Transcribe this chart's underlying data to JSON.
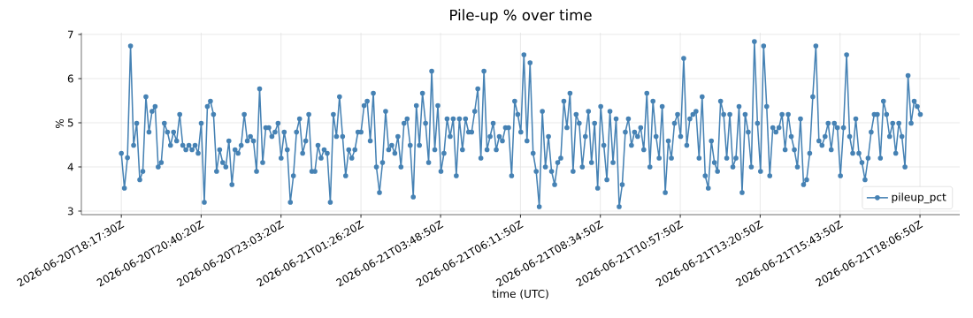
{
  "chart_data": {
    "type": "line",
    "title": "Pile-up % over time",
    "xlabel": "time (UTC)",
    "ylabel": "%",
    "x": [
      "2026-06-20T18:17:30",
      "2026-06-20T18:23:00",
      "2026-06-20T18:28:30",
      "2026-06-20T18:34:00",
      "2026-06-20T18:39:30",
      "2026-06-20T18:45:00",
      "2026-06-20T18:50:30",
      "2026-06-20T18:56:00",
      "2026-06-20T19:01:30",
      "2026-06-20T19:07:00",
      "2026-06-20T19:12:30",
      "2026-06-20T19:18:00",
      "2026-06-20T19:23:30",
      "2026-06-20T19:29:00",
      "2026-06-20T19:34:30",
      "2026-06-20T19:40:00",
      "2026-06-20T19:45:30",
      "2026-06-20T19:51:00",
      "2026-06-20T19:56:30",
      "2026-06-20T20:02:00",
      "2026-06-20T20:07:30",
      "2026-06-20T20:13:00",
      "2026-06-20T20:18:30",
      "2026-06-20T20:24:00",
      "2026-06-20T20:29:30",
      "2026-06-20T20:35:00",
      "2026-06-20T20:40:30",
      "2026-06-20T20:46:00",
      "2026-06-20T20:51:30",
      "2026-06-20T20:57:00",
      "2026-06-20T21:02:30",
      "2026-06-20T21:08:00",
      "2026-06-20T21:13:30",
      "2026-06-20T21:19:00",
      "2026-06-20T21:24:30",
      "2026-06-20T21:30:00",
      "2026-06-20T21:35:30",
      "2026-06-20T21:41:00",
      "2026-06-20T21:46:30",
      "2026-06-20T21:52:00",
      "2026-06-20T21:57:30",
      "2026-06-20T22:03:00",
      "2026-06-20T22:08:30",
      "2026-06-20T22:14:00",
      "2026-06-20T22:19:30",
      "2026-06-20T22:25:00",
      "2026-06-20T22:30:30",
      "2026-06-20T22:36:00",
      "2026-06-20T22:41:30",
      "2026-06-20T22:47:00",
      "2026-06-20T22:52:30",
      "2026-06-20T22:58:00",
      "2026-06-20T23:03:30",
      "2026-06-20T23:09:00",
      "2026-06-20T23:14:30",
      "2026-06-20T23:20:00",
      "2026-06-20T23:25:30",
      "2026-06-20T23:31:00",
      "2026-06-20T23:36:30",
      "2026-06-20T23:42:00",
      "2026-06-20T23:47:30",
      "2026-06-20T23:53:00",
      "2026-06-20T23:58:30",
      "2026-06-21T00:04:00",
      "2026-06-21T00:09:30",
      "2026-06-21T00:15:00",
      "2026-06-21T00:20:30",
      "2026-06-21T00:26:00",
      "2026-06-21T00:31:30",
      "2026-06-21T00:37:00",
      "2026-06-21T00:42:30",
      "2026-06-21T00:48:00",
      "2026-06-21T00:53:30",
      "2026-06-21T00:59:00",
      "2026-06-21T01:04:30",
      "2026-06-21T01:10:00",
      "2026-06-21T01:15:30",
      "2026-06-21T01:21:00",
      "2026-06-21T01:26:30",
      "2026-06-21T01:32:00",
      "2026-06-21T01:37:30",
      "2026-06-21T01:43:00",
      "2026-06-21T01:48:30",
      "2026-06-21T01:54:00",
      "2026-06-21T01:59:30",
      "2026-06-21T02:05:00",
      "2026-06-21T02:10:30",
      "2026-06-21T02:16:00",
      "2026-06-21T02:21:30",
      "2026-06-21T02:27:00",
      "2026-06-21T02:32:30",
      "2026-06-21T02:38:00",
      "2026-06-21T02:43:30",
      "2026-06-21T02:49:00",
      "2026-06-21T02:54:30",
      "2026-06-21T03:00:00",
      "2026-06-21T03:05:30",
      "2026-06-21T03:11:00",
      "2026-06-21T03:16:30",
      "2026-06-21T03:22:00",
      "2026-06-21T03:27:30",
      "2026-06-21T03:33:00",
      "2026-06-21T03:38:30",
      "2026-06-21T03:44:00",
      "2026-06-21T03:49:30",
      "2026-06-21T03:55:00",
      "2026-06-21T04:00:30",
      "2026-06-21T04:06:00",
      "2026-06-21T04:11:30",
      "2026-06-21T04:17:00",
      "2026-06-21T04:22:30",
      "2026-06-21T04:28:00",
      "2026-06-21T04:33:30",
      "2026-06-21T04:39:00",
      "2026-06-21T04:44:30",
      "2026-06-21T04:50:00",
      "2026-06-21T04:55:30",
      "2026-06-21T05:01:00",
      "2026-06-21T05:06:30",
      "2026-06-21T05:12:00",
      "2026-06-21T05:17:30",
      "2026-06-21T05:23:00",
      "2026-06-21T05:28:30",
      "2026-06-21T05:34:00",
      "2026-06-21T05:39:30",
      "2026-06-21T05:45:00",
      "2026-06-21T05:50:30",
      "2026-06-21T05:56:00",
      "2026-06-21T06:01:30",
      "2026-06-21T06:07:00",
      "2026-06-21T06:12:30",
      "2026-06-21T06:18:00",
      "2026-06-21T06:23:30",
      "2026-06-21T06:29:00",
      "2026-06-21T06:34:30",
      "2026-06-21T06:40:00",
      "2026-06-21T06:45:30",
      "2026-06-21T06:51:00",
      "2026-06-21T06:56:30",
      "2026-06-21T07:02:00",
      "2026-06-21T07:07:30",
      "2026-06-21T07:13:00",
      "2026-06-21T07:18:30",
      "2026-06-21T07:24:00",
      "2026-06-21T07:29:30",
      "2026-06-21T07:35:00",
      "2026-06-21T07:40:30",
      "2026-06-21T07:46:00",
      "2026-06-21T07:51:30",
      "2026-06-21T07:57:00",
      "2026-06-21T08:02:30",
      "2026-06-21T08:08:00",
      "2026-06-21T08:13:30",
      "2026-06-21T08:19:00",
      "2026-06-21T08:24:30",
      "2026-06-21T08:30:00",
      "2026-06-21T08:35:30",
      "2026-06-21T08:41:00",
      "2026-06-21T08:46:30",
      "2026-06-21T08:52:00",
      "2026-06-21T08:57:30",
      "2026-06-21T09:03:00",
      "2026-06-21T09:08:30",
      "2026-06-21T09:14:00",
      "2026-06-21T09:19:30",
      "2026-06-21T09:25:00",
      "2026-06-21T09:30:30",
      "2026-06-21T09:36:00",
      "2026-06-21T09:41:30",
      "2026-06-21T09:47:00",
      "2026-06-21T09:52:30",
      "2026-06-21T09:58:00",
      "2026-06-21T10:03:30",
      "2026-06-21T10:09:00",
      "2026-06-21T10:14:30",
      "2026-06-21T10:20:00",
      "2026-06-21T10:25:30",
      "2026-06-21T10:31:00",
      "2026-06-21T10:36:30",
      "2026-06-21T10:42:00",
      "2026-06-21T10:47:30",
      "2026-06-21T10:53:00",
      "2026-06-21T10:58:30",
      "2026-06-21T11:04:00",
      "2026-06-21T11:09:30",
      "2026-06-21T11:15:00",
      "2026-06-21T11:20:30",
      "2026-06-21T11:26:00",
      "2026-06-21T11:31:30",
      "2026-06-21T11:37:00",
      "2026-06-21T11:42:30",
      "2026-06-21T11:48:00",
      "2026-06-21T11:53:30",
      "2026-06-21T11:59:00",
      "2026-06-21T12:04:30",
      "2026-06-21T12:10:00",
      "2026-06-21T12:15:30",
      "2026-06-21T12:21:00",
      "2026-06-21T12:26:30",
      "2026-06-21T12:32:00",
      "2026-06-21T12:37:30",
      "2026-06-21T12:43:00",
      "2026-06-21T12:48:30",
      "2026-06-21T12:54:00",
      "2026-06-21T12:59:30",
      "2026-06-21T13:05:00",
      "2026-06-21T13:10:30",
      "2026-06-21T13:16:00",
      "2026-06-21T13:21:30",
      "2026-06-21T13:27:00",
      "2026-06-21T13:32:30",
      "2026-06-21T13:38:00",
      "2026-06-21T13:43:30",
      "2026-06-21T13:49:00",
      "2026-06-21T13:54:30",
      "2026-06-21T14:00:00",
      "2026-06-21T14:05:30",
      "2026-06-21T14:11:00",
      "2026-06-21T14:16:30",
      "2026-06-21T14:22:00",
      "2026-06-21T14:27:30",
      "2026-06-21T14:33:00",
      "2026-06-21T14:38:30",
      "2026-06-21T14:44:00",
      "2026-06-21T14:49:30",
      "2026-06-21T14:55:00",
      "2026-06-21T15:00:30",
      "2026-06-21T15:06:00",
      "2026-06-21T15:11:30",
      "2026-06-21T15:17:00",
      "2026-06-21T15:22:30",
      "2026-06-21T15:28:00",
      "2026-06-21T15:33:30",
      "2026-06-21T15:39:00",
      "2026-06-21T15:44:30",
      "2026-06-21T15:50:00",
      "2026-06-21T15:55:30",
      "2026-06-21T16:01:00",
      "2026-06-21T16:06:30",
      "2026-06-21T16:12:00",
      "2026-06-21T16:17:30",
      "2026-06-21T16:23:00",
      "2026-06-21T16:28:30",
      "2026-06-21T16:34:00",
      "2026-06-21T16:39:30",
      "2026-06-21T16:45:00",
      "2026-06-21T16:50:30",
      "2026-06-21T16:56:00",
      "2026-06-21T17:01:30",
      "2026-06-21T17:07:00",
      "2026-06-21T17:12:30",
      "2026-06-21T17:18:00",
      "2026-06-21T17:23:30",
      "2026-06-21T17:29:00",
      "2026-06-21T17:34:30",
      "2026-06-21T17:40:00",
      "2026-06-21T17:45:30",
      "2026-06-21T17:51:00",
      "2026-06-21T17:56:30",
      "2026-06-21T18:02:00",
      "2026-06-21T18:07:30"
    ],
    "series": [
      {
        "name": "pileup_pct",
        "color": "#4682b4",
        "values": [
          4.31,
          3.52,
          4.21,
          6.74,
          4.49,
          4.99,
          3.71,
          3.9,
          5.59,
          4.79,
          5.26,
          5.37,
          4.0,
          4.1,
          4.99,
          4.79,
          4.49,
          4.79,
          4.59,
          5.19,
          4.49,
          4.39,
          4.49,
          4.39,
          4.49,
          4.31,
          4.99,
          3.2,
          5.37,
          5.49,
          5.19,
          3.9,
          4.39,
          4.1,
          4.0,
          4.59,
          3.6,
          4.39,
          4.31,
          4.49,
          5.19,
          4.59,
          4.69,
          4.59,
          3.9,
          5.77,
          4.1,
          4.89,
          4.89,
          4.69,
          4.79,
          4.99,
          4.2,
          4.79,
          4.39,
          3.2,
          3.8,
          4.79,
          5.09,
          4.31,
          4.59,
          5.19,
          3.9,
          3.9,
          4.49,
          4.2,
          4.39,
          4.31,
          3.2,
          5.19,
          4.69,
          5.59,
          4.69,
          3.8,
          4.39,
          4.2,
          4.39,
          4.79,
          4.79,
          5.39,
          5.49,
          4.59,
          5.67,
          4.0,
          3.42,
          4.1,
          5.26,
          4.39,
          4.49,
          4.31,
          4.69,
          4.0,
          4.99,
          5.09,
          4.49,
          3.32,
          5.39,
          4.49,
          5.67,
          4.99,
          4.1,
          6.17,
          4.39,
          5.39,
          3.9,
          4.31,
          5.09,
          4.69,
          5.09,
          3.8,
          5.09,
          4.39,
          5.09,
          4.79,
          4.79,
          5.26,
          5.77,
          4.2,
          6.17,
          4.39,
          4.69,
          4.99,
          4.39,
          4.69,
          4.59,
          4.89,
          4.89,
          3.8,
          5.49,
          5.19,
          4.79,
          6.54,
          4.59,
          6.36,
          4.31,
          3.9,
          3.1,
          5.26,
          4.0,
          4.69,
          3.9,
          3.6,
          4.1,
          4.2,
          5.49,
          4.89,
          5.67,
          3.9,
          5.19,
          4.99,
          4.0,
          4.69,
          5.26,
          4.1,
          4.99,
          3.52,
          5.37,
          4.49,
          3.71,
          5.26,
          4.1,
          5.09,
          3.1,
          3.6,
          4.79,
          5.09,
          4.49,
          4.79,
          4.69,
          4.89,
          4.39,
          5.67,
          4.0,
          5.49,
          4.69,
          4.2,
          5.37,
          3.42,
          4.59,
          4.2,
          4.99,
          5.19,
          4.69,
          6.46,
          4.49,
          5.09,
          5.19,
          5.26,
          4.2,
          5.59,
          3.8,
          3.52,
          4.59,
          4.1,
          3.9,
          5.49,
          5.19,
          4.2,
          5.19,
          4.0,
          4.2,
          5.37,
          3.42,
          5.19,
          4.79,
          4.0,
          6.84,
          4.99,
          3.9,
          6.74,
          5.37,
          3.8,
          4.89,
          4.79,
          4.89,
          5.19,
          4.39,
          5.19,
          4.69,
          4.39,
          4.0,
          5.09,
          3.6,
          3.71,
          4.31,
          5.59,
          6.74,
          4.59,
          4.49,
          4.69,
          4.99,
          4.39,
          4.99,
          4.89,
          3.8,
          4.89,
          6.54,
          4.69,
          4.31,
          5.09,
          4.31,
          4.1,
          3.71,
          4.2,
          4.79,
          5.19,
          5.19,
          4.2,
          5.49,
          5.19,
          4.69,
          4.99,
          4.31,
          4.99,
          4.69,
          4.0,
          6.07,
          4.99,
          5.49,
          5.37,
          5.19
        ]
      }
    ],
    "xlim": [
      "2026-06-20T17:06",
      "2026-06-21T19:18"
    ],
    "ylim": [
      2.92,
      7.04
    ],
    "xticks": [
      {
        "value": "2026-06-20T18:17:30",
        "label": "2026-06-20T18:17:30Z"
      },
      {
        "value": "2026-06-20T20:40:20",
        "label": "2026-06-20T20:40:20Z"
      },
      {
        "value": "2026-06-20T23:03:20",
        "label": "2026-06-20T23:03:20Z"
      },
      {
        "value": "2026-06-21T01:26:20",
        "label": "2026-06-21T01:26:20Z"
      },
      {
        "value": "2026-06-21T03:48:50",
        "label": "2026-06-21T03:48:50Z"
      },
      {
        "value": "2026-06-21T06:11:50",
        "label": "2026-06-21T06:11:50Z"
      },
      {
        "value": "2026-06-21T08:34:50",
        "label": "2026-06-21T08:34:50Z"
      },
      {
        "value": "2026-06-21T10:57:50",
        "label": "2026-06-21T10:57:50Z"
      },
      {
        "value": "2026-06-21T13:20:50",
        "label": "2026-06-21T13:20:50Z"
      },
      {
        "value": "2026-06-21T15:43:50",
        "label": "2026-06-21T15:43:50Z"
      },
      {
        "value": "2026-06-21T18:06:50",
        "label": "2026-06-21T18:06:50Z"
      }
    ],
    "yticks": [
      3,
      4,
      5,
      6,
      7
    ],
    "grid": true,
    "legend": "bottom right",
    "marker": "circle",
    "line_style": "solid"
  }
}
